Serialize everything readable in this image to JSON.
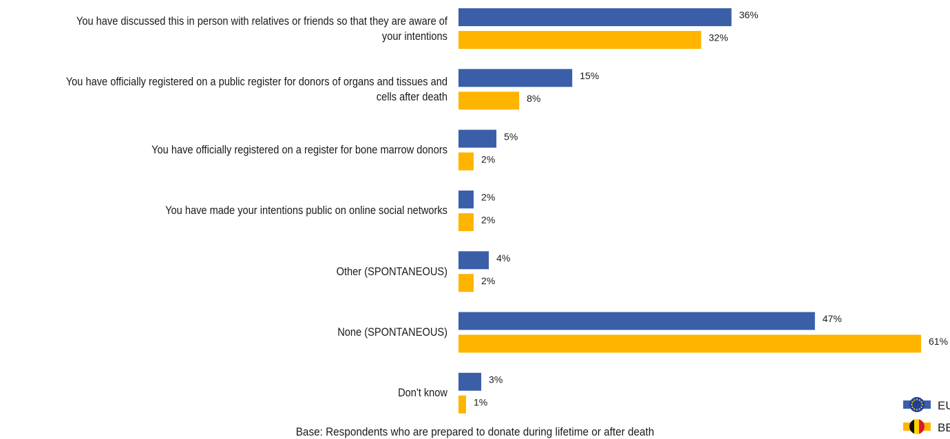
{
  "chart_data": {
    "type": "bar",
    "orientation": "horizontal",
    "categories": [
      "You have discussed this in person with relatives or friends so that they are aware of your intentions",
      "You have officially registered on a public register for donors of organs and tissues and cells after death",
      "You have officially registered on a register for bone marrow donors",
      "You have made your intentions public on online social networks",
      "Other (SPONTANEOUS)",
      "None (SPONTANEOUS)",
      "Don't know"
    ],
    "category_lines": [
      [
        "You have discussed this in person with relatives or friends so that they are aware of",
        "your intentions"
      ],
      [
        "You have officially registered on a public register for donors of organs and tissues and",
        "cells after death"
      ],
      [
        "You have officially registered on a register for bone marrow donors"
      ],
      [
        "You have made your intentions public on online social networks"
      ],
      [
        "Other (SPONTANEOUS)"
      ],
      [
        "None (SPONTANEOUS)"
      ],
      [
        "Don't know"
      ]
    ],
    "series": [
      {
        "name": "EU",
        "color": "#3a5fa8",
        "values": [
          36,
          15,
          5,
          2,
          4,
          47,
          3
        ],
        "labels": [
          "36%",
          "15%",
          "5%",
          "2%",
          "4%",
          "47%",
          "3%"
        ]
      },
      {
        "name": "BE",
        "color": "#ffb400",
        "values": [
          32,
          8,
          2,
          2,
          2,
          61,
          1
        ],
        "labels": [
          "32%",
          "8%",
          "2%",
          "2%",
          "2%",
          "61%",
          "1%"
        ]
      }
    ],
    "value_unit": "%",
    "xlim": [
      0,
      61
    ],
    "grid": false,
    "legend": {
      "position": "bottom-right",
      "entries": [
        "EU",
        "BE"
      ]
    },
    "title": "",
    "xlabel": "",
    "ylabel": ""
  },
  "footer": {
    "base_note": "Base: Respondents who are prepared to donate during lifetime or after death"
  },
  "legend": {
    "eu_label": "EU",
    "be_label": "BE",
    "eu_icon": "eu-flag-icon",
    "be_icon": "belgium-flag-icon"
  }
}
